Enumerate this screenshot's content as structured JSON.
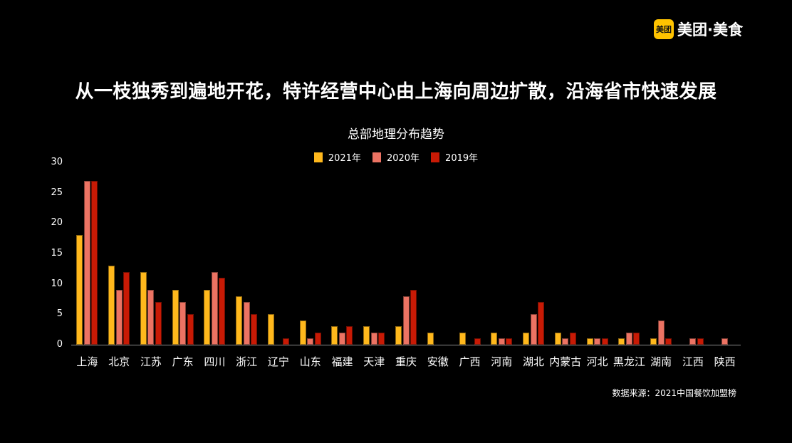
{
  "brand": {
    "badge_text": "美团",
    "name": "美团·美食",
    "badge_color": "#FFC300"
  },
  "headline": "从一枝独秀到遍地开花，特许经营中心由上海向周边扩散，沿海省市快速发展",
  "source_note": "数据来源：2021中国餐饮加盟榜",
  "chart_data": {
    "type": "bar",
    "title": "总部地理分布趋势",
    "xlabel": "",
    "ylabel": "",
    "ylim": [
      0,
      30
    ],
    "yticks": [
      0,
      5,
      10,
      15,
      20,
      25,
      30
    ],
    "grid": false,
    "legend_position": "top-center",
    "categories": [
      "上海",
      "北京",
      "江苏",
      "广东",
      "四川",
      "浙江",
      "辽宁",
      "山东",
      "福建",
      "天津",
      "重庆",
      "安徽",
      "广西",
      "河南",
      "湖北",
      "内蒙古",
      "河北",
      "黑龙江",
      "湖南",
      "江西",
      "陕西"
    ],
    "series": [
      {
        "name": "2021年",
        "color": "#FFB81C",
        "values": [
          18,
          13,
          12,
          9,
          9,
          8,
          5,
          4,
          3,
          3,
          3,
          2,
          2,
          2,
          2,
          2,
          1,
          1,
          1,
          0,
          0
        ]
      },
      {
        "name": "2020年",
        "color": "#EC7363",
        "values": [
          27,
          9,
          9,
          7,
          12,
          7,
          0,
          1,
          2,
          2,
          8,
          0,
          0,
          1,
          5,
          1,
          1,
          2,
          4,
          1,
          1
        ]
      },
      {
        "name": "2019年",
        "color": "#C81A05",
        "values": [
          27,
          12,
          7,
          5,
          11,
          5,
          1,
          2,
          3,
          2,
          9,
          0,
          1,
          1,
          7,
          2,
          1,
          2,
          1,
          1,
          0
        ]
      }
    ]
  }
}
